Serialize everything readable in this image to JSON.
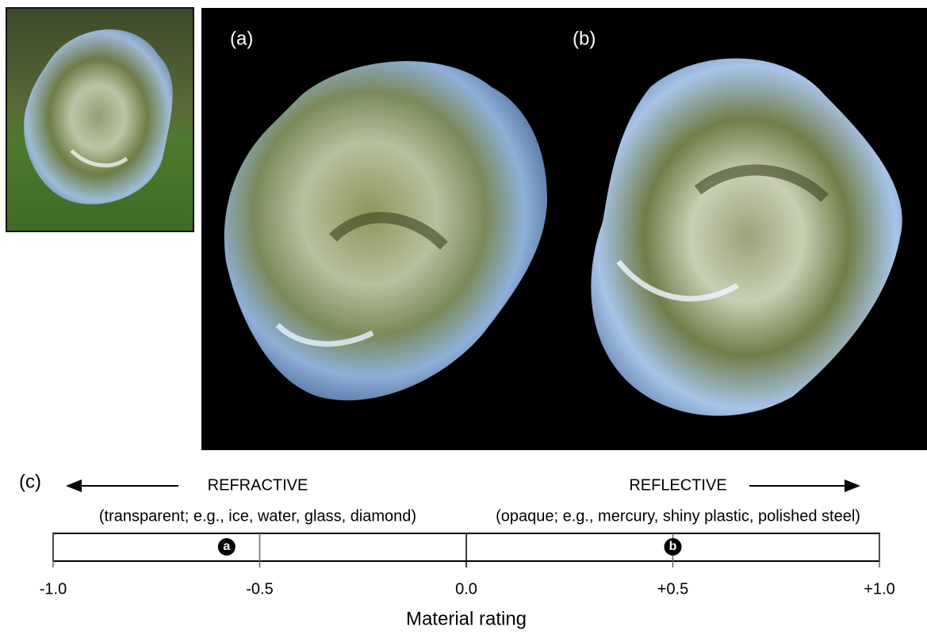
{
  "panels": {
    "a": "(a)",
    "b": "(b)",
    "c": "(c)"
  },
  "refractive": {
    "title": "REFRACTIVE",
    "description": "(transparent; e.g., ice, water, glass, diamond)"
  },
  "reflective": {
    "title": "REFLECTIVE",
    "description": "(opaque; e.g., mercury, shiny plastic, polished steel)"
  },
  "scale": {
    "xlim": [
      -1,
      1
    ],
    "xticks": [
      {
        "value": -1,
        "label": "-1.0"
      },
      {
        "value": -0.5,
        "label": "-0.5"
      },
      {
        "value": 0,
        "label": "0.0"
      },
      {
        "value": 0.5,
        "label": "+0.5"
      },
      {
        "value": 1,
        "label": "+1.0"
      }
    ],
    "markers": [
      {
        "label": "a",
        "value": -0.58
      },
      {
        "label": "b",
        "value": 0.5
      }
    ],
    "axis_label": "Material rating"
  }
}
